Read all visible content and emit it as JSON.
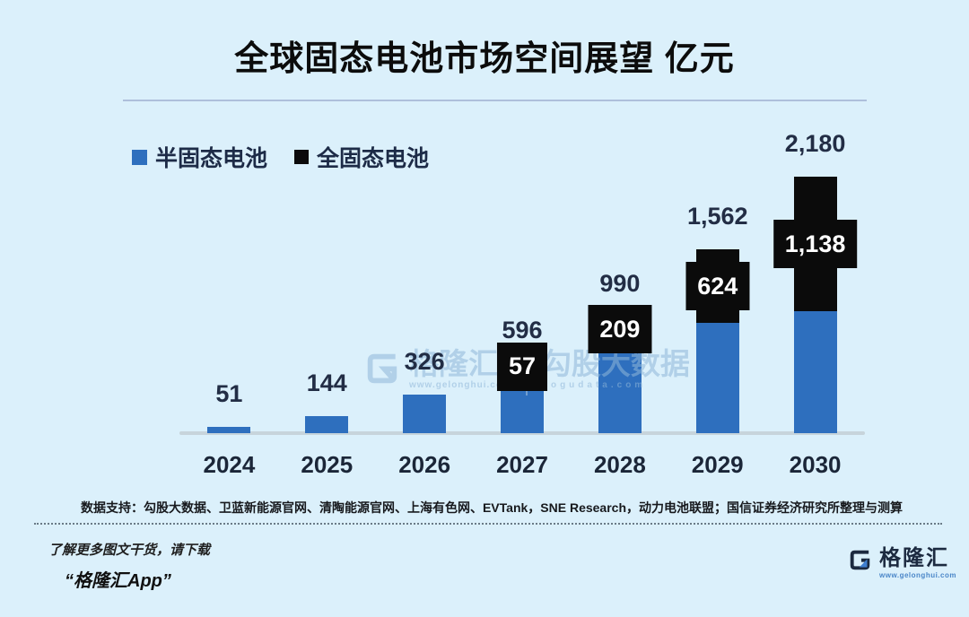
{
  "title": "全球固态电池市场空间展望 亿元",
  "colors": {
    "background": "#dbf0fb",
    "semi_solid_blue": "#2e6fbe",
    "all_solid_black": "#0b0b0b",
    "axis_line": "#c7d4db",
    "label_text": "#222d45",
    "watermark": "#8fb6d9"
  },
  "legend": [
    {
      "label": "半固态电池",
      "color": "#2e6fbe"
    },
    {
      "label": "全固态电池",
      "color": "#0b0b0b"
    }
  ],
  "chart_data": {
    "type": "bar",
    "stacked": true,
    "title": "全球固态电池市场空间展望 亿元",
    "unit": "亿元",
    "categories": [
      "2024",
      "2025",
      "2026",
      "2027",
      "2028",
      "2029",
      "2030"
    ],
    "series": [
      {
        "name": "半固态电池",
        "color": "#2e6fbe",
        "values": [
          51,
          144,
          326,
          539,
          781,
          938,
          1042
        ]
      },
      {
        "name": "全固态电池",
        "color": "#0b0b0b",
        "values": [
          0,
          0,
          0,
          57,
          209,
          624,
          1138
        ]
      }
    ],
    "totals": [
      51,
      144,
      326,
      596,
      990,
      1562,
      2180
    ],
    "total_labels": [
      "51",
      "144",
      "326",
      "596",
      "990",
      "1,562",
      "2,180"
    ],
    "segment_labels": [
      "",
      "",
      "",
      "57",
      "209",
      "624",
      "1,138"
    ],
    "ylim": [
      0,
      2400
    ],
    "grid": false,
    "legend_position": "top-left"
  },
  "watermark": {
    "logo_text": "格隆汇",
    "logo_url": "www.gelonghui.com",
    "brand": "勾股大数据",
    "brand_url": "gogudata.com"
  },
  "source_note": "数据支持：勾股大数据、卫蓝新能源官网、清陶能源官网、上海有色网、EVTank，SNE Research，动力电池联盟；国信证券经济研究所整理与测算",
  "footer": {
    "promo_line1": "了解更多图文干货，请下载",
    "promo_line2": "“格隆汇App”",
    "logo_text": "格隆汇",
    "logo_url": "www.gelonghui.com"
  }
}
